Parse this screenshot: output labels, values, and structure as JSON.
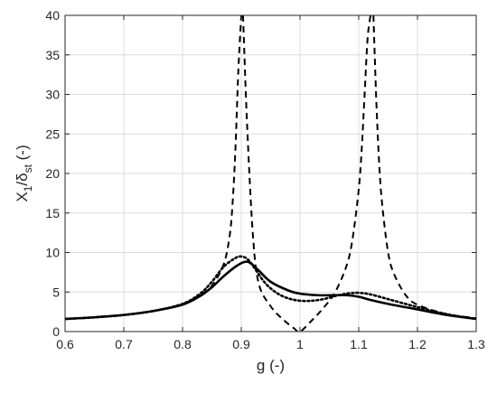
{
  "chart_data": {
    "type": "line",
    "title": "",
    "xlabel": "g (-)",
    "ylabel": {
      "main": "X",
      "main_sub": "1",
      "slash": "/",
      "greek": "δ",
      "greek_sub": "st",
      "unit": " (-)"
    },
    "xlim": [
      0.6,
      1.3
    ],
    "ylim": [
      0,
      40
    ],
    "xticks": [
      0.6,
      0.7,
      0.8,
      0.9,
      1.0,
      1.1,
      1.2,
      1.3
    ],
    "xtick_labels": [
      "0.6",
      "0.7",
      "0.8",
      "0.9",
      "1",
      "1.1",
      "1.2",
      "1.3"
    ],
    "yticks": [
      0,
      5,
      10,
      15,
      20,
      25,
      30,
      35,
      40
    ],
    "ytick_labels": [
      "0",
      "5",
      "10",
      "15",
      "20",
      "25",
      "30",
      "35",
      "40"
    ],
    "grid": true,
    "legend": "none",
    "colors": {
      "line": "#000000",
      "grid": "#dcdcdc",
      "axis": "#262626"
    },
    "series": [
      {
        "style": "dashed",
        "x": [
          0.6,
          0.65,
          0.7,
          0.75,
          0.8,
          0.83,
          0.85,
          0.87,
          0.88,
          0.885,
          0.89,
          0.895,
          0.9
        ],
        "y": [
          1.6,
          1.8,
          2.1,
          2.6,
          3.5,
          4.6,
          5.8,
          8.5,
          12,
          16,
          23,
          33,
          40
        ]
      },
      {
        "style": "dashed",
        "x": [
          0.903,
          0.91,
          0.92,
          0.93,
          0.95,
          0.97,
          0.99,
          1.0,
          1.02,
          1.04,
          1.06,
          1.08,
          1.09,
          1.1,
          1.105,
          1.11,
          1.115,
          1.12
        ],
        "y": [
          40,
          26,
          12,
          6,
          3.2,
          1.6,
          0.4,
          0.0,
          1.4,
          3.0,
          5.0,
          8.5,
          12,
          18,
          23,
          30,
          37,
          40
        ]
      },
      {
        "style": "dashed",
        "x": [
          1.125,
          1.13,
          1.135,
          1.14,
          1.15,
          1.16,
          1.18,
          1.2,
          1.25,
          1.3
        ],
        "y": [
          40,
          29,
          21,
          16,
          10,
          7.3,
          4.6,
          3.4,
          2.2,
          1.7
        ]
      },
      {
        "style": "solid",
        "x": [
          0.6,
          0.65,
          0.7,
          0.75,
          0.8,
          0.83,
          0.85,
          0.87,
          0.89,
          0.905,
          0.915,
          0.93,
          0.95,
          0.98,
          1.0,
          1.03,
          1.06,
          1.08,
          1.1,
          1.12,
          1.15,
          1.2,
          1.25,
          1.3
        ],
        "y": [
          1.6,
          1.8,
          2.1,
          2.6,
          3.4,
          4.5,
          5.6,
          7.0,
          8.2,
          8.8,
          8.7,
          7.7,
          6.3,
          5.2,
          4.8,
          4.6,
          4.6,
          4.6,
          4.4,
          4.0,
          3.5,
          2.8,
          2.1,
          1.6
        ]
      },
      {
        "style": "dotted",
        "x": [
          0.6,
          0.65,
          0.7,
          0.75,
          0.8,
          0.83,
          0.85,
          0.87,
          0.89,
          0.9,
          0.91,
          0.92,
          0.94,
          0.96,
          0.98,
          1.0,
          1.02,
          1.04,
          1.06,
          1.08,
          1.1,
          1.12,
          1.15,
          1.2,
          1.25,
          1.3
        ],
        "y": [
          1.6,
          1.8,
          2.1,
          2.6,
          3.5,
          4.8,
          6.3,
          8.2,
          9.3,
          9.5,
          9.2,
          8.3,
          6.2,
          4.9,
          4.2,
          3.9,
          3.9,
          4.1,
          4.5,
          4.8,
          4.9,
          4.7,
          4.1,
          3.1,
          2.2,
          1.6
        ]
      }
    ]
  }
}
